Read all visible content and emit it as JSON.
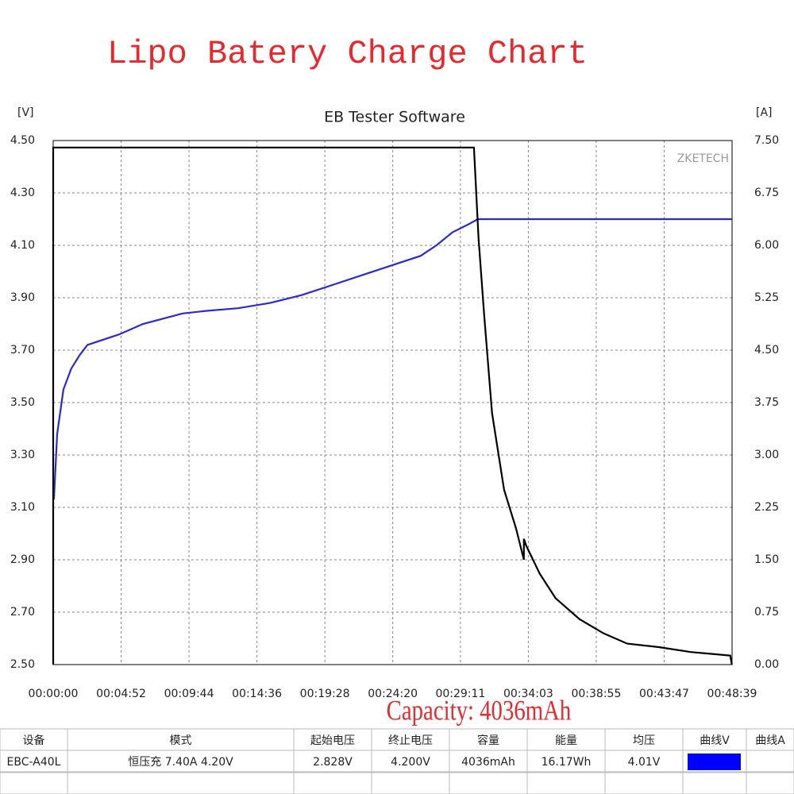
{
  "chart_data": {
    "type": "line",
    "title": "EB Tester Software",
    "heading": "Lipo Batery Charge Chart",
    "watermark": "ZKETECH",
    "annotation": "Capacity: 4036mAh",
    "y_label": "[V]",
    "y2_label": "[A]",
    "grid": true,
    "xlim": [
      0,
      2919
    ],
    "xticks": [
      {
        "value": 0,
        "label": "00:00:00"
      },
      {
        "value": 292,
        "label": "00:04:52"
      },
      {
        "value": 584,
        "label": "00:09:44"
      },
      {
        "value": 876,
        "label": "00:14:36"
      },
      {
        "value": 1168,
        "label": "00:19:28"
      },
      {
        "value": 1460,
        "label": "00:24:20"
      },
      {
        "value": 1751,
        "label": "00:29:11"
      },
      {
        "value": 2043,
        "label": "00:34:03"
      },
      {
        "value": 2335,
        "label": "00:38:55"
      },
      {
        "value": 2627,
        "label": "00:43:47"
      },
      {
        "value": 2919,
        "label": "00:48:39"
      }
    ],
    "ylim": [
      2.5,
      4.5
    ],
    "yticks": [
      {
        "value": 2.5,
        "label": "2.50"
      },
      {
        "value": 2.7,
        "label": "2.70"
      },
      {
        "value": 2.9,
        "label": "2.90"
      },
      {
        "value": 3.1,
        "label": "3.10"
      },
      {
        "value": 3.3,
        "label": "3.30"
      },
      {
        "value": 3.5,
        "label": "3.50"
      },
      {
        "value": 3.7,
        "label": "3.70"
      },
      {
        "value": 3.9,
        "label": "3.90"
      },
      {
        "value": 4.1,
        "label": "4.10"
      },
      {
        "value": 4.3,
        "label": "4.30"
      },
      {
        "value": 4.5,
        "label": "4.50"
      }
    ],
    "y2lim": [
      0,
      7.5
    ],
    "y2ticks": [
      {
        "value": 0,
        "label": "0.00"
      },
      {
        "value": 0.75,
        "label": "0.75"
      },
      {
        "value": 1.5,
        "label": "1.50"
      },
      {
        "value": 2.25,
        "label": "2.25"
      },
      {
        "value": 3,
        "label": "3.00"
      },
      {
        "value": 3.75,
        "label": "3.75"
      },
      {
        "value": 4.5,
        "label": "4.50"
      },
      {
        "value": 5.25,
        "label": "5.25"
      },
      {
        "value": 6,
        "label": "6.00"
      },
      {
        "value": 6.75,
        "label": "6.75"
      },
      {
        "value": 7.5,
        "label": "7.50"
      }
    ],
    "series": [
      {
        "color": "#2a2ad0",
        "axis": "y",
        "x": [
          3,
          17,
          44,
          78,
          113,
          147,
          283,
          386,
          556,
          659,
          795,
          932,
          1068,
          1205,
          1341,
          1478,
          1580,
          1648,
          1717,
          1785,
          1826,
          2918
        ],
        "values": [
          3.13,
          3.38,
          3.55,
          3.63,
          3.68,
          3.72,
          3.76,
          3.8,
          3.84,
          3.85,
          3.86,
          3.88,
          3.91,
          3.95,
          3.99,
          4.03,
          4.06,
          4.1,
          4.15,
          4.18,
          4.2,
          4.2
        ]
      },
      {
        "color": "#000000",
        "axis": "y2",
        "x": [
          0,
          0,
          1809,
          1829,
          1853,
          1887,
          1939,
          1990,
          2024,
          2024,
          2034,
          2092,
          2160,
          2263,
          2365,
          2468,
          2604,
          2741,
          2911,
          2918
        ],
        "values": [
          0,
          7.4,
          7.4,
          6.1,
          5.0,
          3.6,
          2.5,
          1.95,
          1.5,
          1.8,
          1.7,
          1.3,
          0.95,
          0.65,
          0.45,
          0.3,
          0.25,
          0.18,
          0.13,
          0
        ]
      }
    ]
  },
  "table": {
    "headers": [
      "设备",
      "模式",
      "起始电压",
      "终止电压",
      "容量",
      "能量",
      "均压",
      "曲线V",
      "曲线A"
    ],
    "rows": [
      [
        "EBC-A40L",
        "恒压充 7.40A 4.20V",
        "2.828V",
        "4.200V",
        "4036mAh",
        "16.17Wh",
        "4.01V"
      ]
    ]
  }
}
